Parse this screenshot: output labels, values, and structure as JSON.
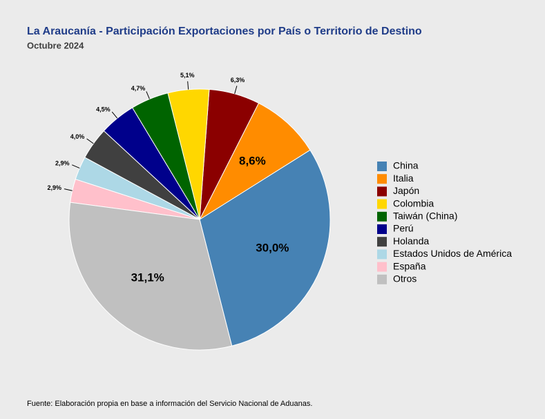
{
  "chart_data": {
    "type": "pie",
    "title": "La Araucanía - Participación Exportaciones por País o Territorio de Destino",
    "subtitle": "Octubre 2024",
    "source": "Fuente: Elaboración propia en base a información del Servicio Nacional de Aduanas.",
    "categories": [
      "China",
      "Italia",
      "Japón",
      "Colombia",
      "Taiwán (China)",
      "Perú",
      "Holanda",
      "Estados Unidos de América",
      "España",
      "Otros"
    ],
    "values": [
      30.0,
      8.6,
      6.3,
      5.1,
      4.7,
      4.5,
      4.0,
      2.9,
      2.9,
      31.1
    ],
    "value_labels": [
      "30,0%",
      "8,6%",
      "6,3%",
      "5,1%",
      "4,7%",
      "4,5%",
      "4,0%",
      "2,9%",
      "2,9%",
      "31,1%"
    ],
    "colors": [
      "#4682b4",
      "#ff8c00",
      "#8b0000",
      "#ffd700",
      "#006400",
      "#00008b",
      "#404040",
      "#add8e6",
      "#ffc0cb",
      "#c0c0c0"
    ],
    "legend": "right"
  }
}
